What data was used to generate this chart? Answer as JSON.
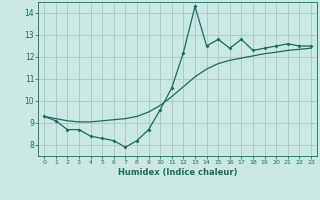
{
  "xlabel": "Humidex (Indice chaleur)",
  "background_color": "#cce8e4",
  "grid_color": "#aaccc8",
  "line_color": "#1a6b5a",
  "x_data": [
    0,
    1,
    2,
    3,
    4,
    5,
    6,
    7,
    8,
    9,
    10,
    11,
    12,
    13,
    14,
    15,
    16,
    17,
    18,
    19,
    20,
    21,
    22,
    23
  ],
  "y_jagged": [
    9.3,
    9.1,
    8.7,
    8.7,
    8.4,
    8.3,
    8.2,
    7.9,
    8.2,
    8.7,
    9.6,
    10.6,
    12.2,
    14.3,
    12.5,
    12.8,
    12.4,
    12.8,
    12.3,
    12.4,
    12.5,
    12.6,
    12.5,
    12.5
  ],
  "y_smooth": [
    9.3,
    9.2,
    9.1,
    9.05,
    9.05,
    9.1,
    9.15,
    9.2,
    9.3,
    9.5,
    9.8,
    10.2,
    10.65,
    11.1,
    11.45,
    11.7,
    11.85,
    11.95,
    12.05,
    12.15,
    12.22,
    12.3,
    12.35,
    12.4
  ],
  "ylim": [
    7.5,
    14.5
  ],
  "yticks": [
    8,
    9,
    10,
    11,
    12,
    13,
    14
  ],
  "xlim": [
    -0.5,
    23.5
  ],
  "xticks": [
    0,
    1,
    2,
    3,
    4,
    5,
    6,
    7,
    8,
    9,
    10,
    11,
    12,
    13,
    14,
    15,
    16,
    17,
    18,
    19,
    20,
    21,
    22,
    23
  ],
  "xticklabels": [
    "0",
    "1",
    "2",
    "3",
    "4",
    "5",
    "6",
    "7",
    "8",
    "9",
    "10",
    "11",
    "12",
    "13",
    "14",
    "15",
    "16",
    "17",
    "18",
    "19",
    "20",
    "21",
    "22",
    "23"
  ]
}
